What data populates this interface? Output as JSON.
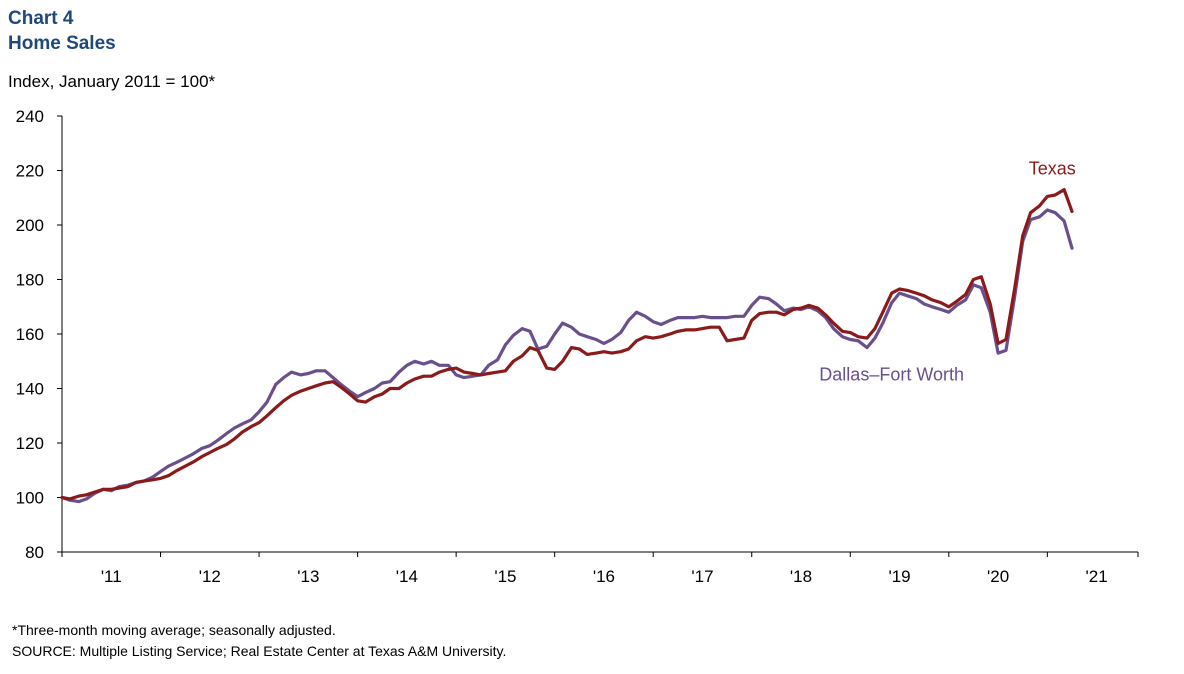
{
  "header": {
    "chart_number": "Chart 4",
    "title": "Home Sales"
  },
  "y_unit_label": "Index, January 2011 = 100*",
  "notes": {
    "footnote": "*Three-month moving average; seasonally adjusted.",
    "source": "SOURCE: Multiple Listing Service; Real Estate Center at Texas A&M University."
  },
  "colors": {
    "texas": "#8b1a1a",
    "dfw": "#6a4f8d",
    "title": "#1f497d"
  },
  "chart_data": {
    "type": "line",
    "title": "Home Sales",
    "ylabel": "Index, January 2011 = 100*",
    "ylim": [
      80,
      240
    ],
    "yticks": [
      80,
      100,
      120,
      140,
      160,
      180,
      200,
      220,
      240
    ],
    "xlim": [
      2011.0,
      2021.92
    ],
    "xticks": [
      {
        "label": "'11",
        "at": 2011.5
      },
      {
        "label": "'12",
        "at": 2012.5
      },
      {
        "label": "'13",
        "at": 2013.5
      },
      {
        "label": "'14",
        "at": 2014.5
      },
      {
        "label": "'15",
        "at": 2015.5
      },
      {
        "label": "'16",
        "at": 2016.5
      },
      {
        "label": "'17",
        "at": 2017.5
      },
      {
        "label": "'18",
        "at": 2018.5
      },
      {
        "label": "'19",
        "at": 2019.5
      },
      {
        "label": "'20",
        "at": 2020.5
      },
      {
        "label": "'21",
        "at": 2021.5
      }
    ],
    "grid": false,
    "legend": "direct labels",
    "series": [
      {
        "name": "Texas",
        "color": "#8b1a1a",
        "points": [
          [
            2011.0,
            100
          ],
          [
            2011.08,
            99.5
          ],
          [
            2011.17,
            100.5
          ],
          [
            2011.25,
            101
          ],
          [
            2011.33,
            102
          ],
          [
            2011.42,
            103
          ],
          [
            2011.5,
            103
          ],
          [
            2011.58,
            103.5
          ],
          [
            2011.67,
            104
          ],
          [
            2011.75,
            105.5
          ],
          [
            2011.83,
            106
          ],
          [
            2011.92,
            106.5
          ],
          [
            2012.0,
            107
          ],
          [
            2012.08,
            108
          ],
          [
            2012.17,
            110
          ],
          [
            2012.25,
            111.5
          ],
          [
            2012.33,
            113
          ],
          [
            2012.42,
            115
          ],
          [
            2012.5,
            116.5
          ],
          [
            2012.58,
            118
          ],
          [
            2012.67,
            119.5
          ],
          [
            2012.75,
            121.5
          ],
          [
            2012.83,
            124
          ],
          [
            2012.92,
            126
          ],
          [
            2013.0,
            127.5
          ],
          [
            2013.08,
            130
          ],
          [
            2013.17,
            133
          ],
          [
            2013.25,
            135.5
          ],
          [
            2013.33,
            137.5
          ],
          [
            2013.42,
            139
          ],
          [
            2013.5,
            140
          ],
          [
            2013.58,
            141
          ],
          [
            2013.67,
            142
          ],
          [
            2013.75,
            142.5
          ],
          [
            2013.83,
            140.5
          ],
          [
            2013.92,
            138
          ],
          [
            2014.0,
            135.5
          ],
          [
            2014.08,
            135
          ],
          [
            2014.17,
            137
          ],
          [
            2014.25,
            138
          ],
          [
            2014.33,
            140
          ],
          [
            2014.42,
            140
          ],
          [
            2014.5,
            142
          ],
          [
            2014.58,
            143.5
          ],
          [
            2014.67,
            144.5
          ],
          [
            2014.75,
            144.5
          ],
          [
            2014.83,
            146
          ],
          [
            2014.92,
            147
          ],
          [
            2015.0,
            147.5
          ],
          [
            2015.08,
            146
          ],
          [
            2015.17,
            145.5
          ],
          [
            2015.25,
            145
          ],
          [
            2015.33,
            145.5
          ],
          [
            2015.42,
            146
          ],
          [
            2015.5,
            146.5
          ],
          [
            2015.58,
            150
          ],
          [
            2015.67,
            152
          ],
          [
            2015.75,
            155
          ],
          [
            2015.83,
            154
          ],
          [
            2015.92,
            147.5
          ],
          [
            2016.0,
            147
          ],
          [
            2016.08,
            150
          ],
          [
            2016.17,
            155
          ],
          [
            2016.25,
            154.5
          ],
          [
            2016.33,
            152.5
          ],
          [
            2016.42,
            153
          ],
          [
            2016.5,
            153.5
          ],
          [
            2016.58,
            153
          ],
          [
            2016.67,
            153.5
          ],
          [
            2016.75,
            154.5
          ],
          [
            2016.83,
            157.5
          ],
          [
            2016.92,
            159
          ],
          [
            2017.0,
            158.5
          ],
          [
            2017.08,
            159
          ],
          [
            2017.17,
            160
          ],
          [
            2017.25,
            161
          ],
          [
            2017.33,
            161.5
          ],
          [
            2017.42,
            161.5
          ],
          [
            2017.5,
            162
          ],
          [
            2017.58,
            162.5
          ],
          [
            2017.67,
            162.5
          ],
          [
            2017.75,
            157.5
          ],
          [
            2017.83,
            158
          ],
          [
            2017.92,
            158.5
          ],
          [
            2018.0,
            165
          ],
          [
            2018.08,
            167.5
          ],
          [
            2018.17,
            168
          ],
          [
            2018.25,
            168
          ],
          [
            2018.33,
            167
          ],
          [
            2018.42,
            169
          ],
          [
            2018.5,
            169.5
          ],
          [
            2018.58,
            170.5
          ],
          [
            2018.67,
            169.5
          ],
          [
            2018.75,
            167
          ],
          [
            2018.83,
            164
          ],
          [
            2018.92,
            161
          ],
          [
            2019.0,
            160.5
          ],
          [
            2019.08,
            159
          ],
          [
            2019.17,
            158.5
          ],
          [
            2019.25,
            162
          ],
          [
            2019.33,
            168
          ],
          [
            2019.42,
            175
          ],
          [
            2019.5,
            176.5
          ],
          [
            2019.58,
            176
          ],
          [
            2019.67,
            175
          ],
          [
            2019.75,
            174
          ],
          [
            2019.83,
            172.5
          ],
          [
            2019.92,
            171.5
          ],
          [
            2020.0,
            170
          ],
          [
            2020.08,
            172
          ],
          [
            2020.17,
            174.5
          ],
          [
            2020.25,
            180
          ],
          [
            2020.33,
            181
          ],
          [
            2020.42,
            171
          ],
          [
            2020.5,
            156.5
          ],
          [
            2020.58,
            158
          ],
          [
            2020.67,
            177
          ],
          [
            2020.75,
            196
          ],
          [
            2020.83,
            204.5
          ],
          [
            2020.92,
            207
          ],
          [
            2021.0,
            210.5
          ],
          [
            2021.08,
            211
          ],
          [
            2021.17,
            213
          ],
          [
            2021.25,
            205
          ]
        ]
      },
      {
        "name": "Dallas–Fort Worth",
        "color": "#6a4f8d",
        "points": [
          [
            2011.0,
            100
          ],
          [
            2011.08,
            99
          ],
          [
            2011.17,
            98.5
          ],
          [
            2011.25,
            99.5
          ],
          [
            2011.33,
            101.5
          ],
          [
            2011.42,
            103
          ],
          [
            2011.5,
            102.5
          ],
          [
            2011.58,
            104
          ],
          [
            2011.67,
            104.5
          ],
          [
            2011.75,
            105.5
          ],
          [
            2011.83,
            106
          ],
          [
            2011.92,
            107.5
          ],
          [
            2012.0,
            109.5
          ],
          [
            2012.08,
            111.5
          ],
          [
            2012.17,
            113
          ],
          [
            2012.25,
            114.5
          ],
          [
            2012.33,
            116
          ],
          [
            2012.42,
            118
          ],
          [
            2012.5,
            119
          ],
          [
            2012.58,
            121
          ],
          [
            2012.67,
            123.5
          ],
          [
            2012.75,
            125.5
          ],
          [
            2012.83,
            127
          ],
          [
            2012.92,
            128.5
          ],
          [
            2013.0,
            131.5
          ],
          [
            2013.08,
            135
          ],
          [
            2013.17,
            141.5
          ],
          [
            2013.25,
            144
          ],
          [
            2013.33,
            146
          ],
          [
            2013.42,
            145
          ],
          [
            2013.5,
            145.5
          ],
          [
            2013.58,
            146.5
          ],
          [
            2013.67,
            146.5
          ],
          [
            2013.75,
            144
          ],
          [
            2013.83,
            141.5
          ],
          [
            2013.92,
            139
          ],
          [
            2014.0,
            137
          ],
          [
            2014.08,
            138.5
          ],
          [
            2014.17,
            140
          ],
          [
            2014.25,
            142
          ],
          [
            2014.33,
            142.5
          ],
          [
            2014.42,
            146
          ],
          [
            2014.5,
            148.5
          ],
          [
            2014.58,
            150
          ],
          [
            2014.67,
            149
          ],
          [
            2014.75,
            150
          ],
          [
            2014.83,
            148.5
          ],
          [
            2014.92,
            148.5
          ],
          [
            2015.0,
            145
          ],
          [
            2015.08,
            144
          ],
          [
            2015.17,
            144.5
          ],
          [
            2015.25,
            145
          ],
          [
            2015.33,
            148.5
          ],
          [
            2015.42,
            150.5
          ],
          [
            2015.5,
            156
          ],
          [
            2015.58,
            159.5
          ],
          [
            2015.67,
            162
          ],
          [
            2015.75,
            161
          ],
          [
            2015.83,
            154.5
          ],
          [
            2015.92,
            155.5
          ],
          [
            2016.0,
            160
          ],
          [
            2016.08,
            164
          ],
          [
            2016.17,
            162.5
          ],
          [
            2016.25,
            160
          ],
          [
            2016.33,
            159
          ],
          [
            2016.42,
            158
          ],
          [
            2016.5,
            156.5
          ],
          [
            2016.58,
            158
          ],
          [
            2016.67,
            160.5
          ],
          [
            2016.75,
            165
          ],
          [
            2016.83,
            168
          ],
          [
            2016.92,
            166.5
          ],
          [
            2017.0,
            164.5
          ],
          [
            2017.08,
            163.5
          ],
          [
            2017.17,
            165
          ],
          [
            2017.25,
            166
          ],
          [
            2017.33,
            166
          ],
          [
            2017.42,
            166
          ],
          [
            2017.5,
            166.5
          ],
          [
            2017.58,
            166
          ],
          [
            2017.67,
            166
          ],
          [
            2017.75,
            166
          ],
          [
            2017.83,
            166.5
          ],
          [
            2017.92,
            166.5
          ],
          [
            2018.0,
            170.5
          ],
          [
            2018.08,
            173.5
          ],
          [
            2018.17,
            173
          ],
          [
            2018.25,
            171
          ],
          [
            2018.33,
            168.5
          ],
          [
            2018.42,
            169.5
          ],
          [
            2018.5,
            169
          ],
          [
            2018.58,
            170
          ],
          [
            2018.67,
            168.5
          ],
          [
            2018.75,
            166
          ],
          [
            2018.83,
            162
          ],
          [
            2018.92,
            159
          ],
          [
            2019.0,
            158
          ],
          [
            2019.08,
            157.5
          ],
          [
            2019.17,
            155
          ],
          [
            2019.25,
            158.5
          ],
          [
            2019.33,
            164
          ],
          [
            2019.42,
            171.5
          ],
          [
            2019.5,
            175
          ],
          [
            2019.58,
            174
          ],
          [
            2019.67,
            173
          ],
          [
            2019.75,
            171
          ],
          [
            2019.83,
            170
          ],
          [
            2019.92,
            169
          ],
          [
            2020.0,
            168
          ],
          [
            2020.08,
            170.5
          ],
          [
            2020.17,
            172.5
          ],
          [
            2020.25,
            178
          ],
          [
            2020.33,
            177
          ],
          [
            2020.42,
            168
          ],
          [
            2020.5,
            153
          ],
          [
            2020.58,
            154
          ],
          [
            2020.67,
            174
          ],
          [
            2020.75,
            194
          ],
          [
            2020.83,
            202
          ],
          [
            2020.92,
            203
          ],
          [
            2021.0,
            205.5
          ],
          [
            2021.08,
            204.5
          ],
          [
            2021.17,
            201.5
          ],
          [
            2021.25,
            191.5
          ]
        ]
      }
    ],
    "annotations": [
      {
        "text": "Texas",
        "series": "Texas"
      },
      {
        "text": "Dallas–Fort Worth",
        "series": "Dallas–Fort Worth"
      }
    ]
  }
}
